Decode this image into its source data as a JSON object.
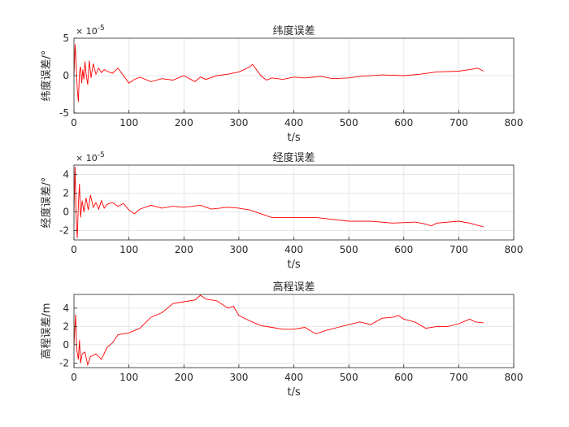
{
  "chart_data": [
    {
      "type": "line",
      "title": "纬度误差",
      "xlabel": "t/s",
      "ylabel": "纬度误差/°",
      "exponent_label": "× 10^-5",
      "exp_base": "× 10",
      "exp_power": "-5",
      "xlim": [
        0,
        800
      ],
      "ylim": [
        -5,
        5
      ],
      "xticks": [
        0,
        100,
        200,
        300,
        400,
        500,
        600,
        700,
        800
      ],
      "yticks": [
        -5,
        0,
        5
      ],
      "grid": true,
      "color": "#ff0000",
      "x": [
        0,
        2,
        4,
        6,
        8,
        10,
        12,
        14,
        16,
        18,
        20,
        22,
        25,
        28,
        31,
        35,
        40,
        45,
        50,
        55,
        60,
        70,
        80,
        90,
        100,
        110,
        120,
        140,
        160,
        180,
        200,
        220,
        230,
        240,
        260,
        280,
        300,
        310,
        320,
        325,
        330,
        340,
        350,
        360,
        380,
        400,
        420,
        450,
        470,
        500,
        520,
        560,
        600,
        630,
        660,
        700,
        720,
        735,
        745
      ],
      "y": [
        0,
        4.2,
        1.5,
        -1.8,
        -3.5,
        0.5,
        1.2,
        -1.0,
        0.8,
        -0.5,
        1.9,
        0.3,
        -1.2,
        2.0,
        -0.3,
        1.6,
        0.2,
        1.0,
        0.4,
        0.8,
        0.6,
        0.3,
        1.0,
        0.0,
        -1.0,
        -0.5,
        -0.2,
        -0.8,
        -0.4,
        -0.6,
        0.0,
        -0.8,
        -0.2,
        -0.5,
        0.0,
        0.2,
        0.5,
        0.8,
        1.2,
        1.5,
        1.0,
        0.0,
        -0.6,
        -0.3,
        -0.5,
        -0.2,
        -0.3,
        -0.1,
        -0.4,
        -0.3,
        -0.1,
        0.1,
        0.0,
        0.2,
        0.5,
        0.6,
        0.8,
        1.0,
        0.6
      ]
    },
    {
      "type": "line",
      "title": "经度误差",
      "xlabel": "t/s",
      "ylabel": "经度误差/°",
      "exponent_label": "× 10^-5",
      "exp_base": "× 10",
      "exp_power": "-5",
      "xlim": [
        0,
        800
      ],
      "ylim": [
        -3,
        5
      ],
      "xticks": [
        0,
        100,
        200,
        300,
        400,
        500,
        600,
        700,
        800
      ],
      "yticks": [
        -2,
        0,
        2,
        4
      ],
      "grid": true,
      "color": "#ff0000",
      "x": [
        0,
        2,
        4,
        6,
        8,
        10,
        12,
        15,
        18,
        22,
        26,
        30,
        35,
        40,
        45,
        50,
        55,
        60,
        70,
        80,
        90,
        100,
        110,
        120,
        140,
        160,
        180,
        200,
        230,
        250,
        280,
        300,
        320,
        340,
        360,
        400,
        440,
        470,
        500,
        540,
        580,
        620,
        640,
        650,
        660,
        700,
        720,
        745
      ],
      "y": [
        0,
        4.8,
        -0.5,
        -2.8,
        0.8,
        3.0,
        -0.6,
        1.2,
        0.0,
        1.5,
        0.2,
        1.8,
        0.5,
        1.0,
        0.3,
        1.2,
        0.4,
        0.8,
        1.0,
        0.6,
        0.9,
        0.2,
        -0.2,
        0.3,
        0.7,
        0.4,
        0.6,
        0.5,
        0.7,
        0.3,
        0.5,
        0.4,
        0.2,
        -0.2,
        -0.6,
        -0.6,
        -0.6,
        -0.8,
        -1.0,
        -1.0,
        -1.2,
        -1.1,
        -1.3,
        -1.5,
        -1.2,
        -1.0,
        -1.2,
        -1.6
      ]
    },
    {
      "type": "line",
      "title": "高程误差",
      "xlabel": "t/s",
      "ylabel": "高程误差/m",
      "xlim": [
        0,
        800
      ],
      "ylim": [
        -2.5,
        5.5
      ],
      "xticks": [
        0,
        100,
        200,
        300,
        400,
        500,
        600,
        700,
        800
      ],
      "yticks": [
        -2,
        0,
        2,
        4
      ],
      "grid": true,
      "color": "#ff0000",
      "x": [
        0,
        3,
        5,
        8,
        10,
        12,
        15,
        20,
        25,
        30,
        40,
        50,
        60,
        70,
        80,
        100,
        120,
        140,
        160,
        180,
        200,
        220,
        230,
        240,
        260,
        280,
        290,
        300,
        320,
        340,
        360,
        380,
        400,
        420,
        440,
        460,
        480,
        500,
        520,
        540,
        560,
        580,
        590,
        600,
        620,
        640,
        660,
        680,
        700,
        720,
        730,
        745
      ],
      "y": [
        0,
        3.3,
        -0.5,
        -1.6,
        0.5,
        -2.0,
        -1.0,
        -0.8,
        -2.2,
        -1.3,
        -1.0,
        -1.6,
        -0.3,
        0.2,
        1.1,
        1.3,
        1.8,
        3.0,
        3.5,
        4.5,
        4.7,
        4.9,
        5.4,
        5.0,
        4.8,
        4.0,
        4.2,
        3.2,
        2.6,
        2.1,
        1.9,
        1.7,
        1.7,
        1.9,
        1.2,
        1.6,
        1.9,
        2.2,
        2.5,
        2.2,
        2.9,
        3.0,
        3.2,
        2.8,
        2.5,
        1.8,
        2.0,
        2.0,
        2.3,
        2.8,
        2.5,
        2.4
      ]
    }
  ]
}
